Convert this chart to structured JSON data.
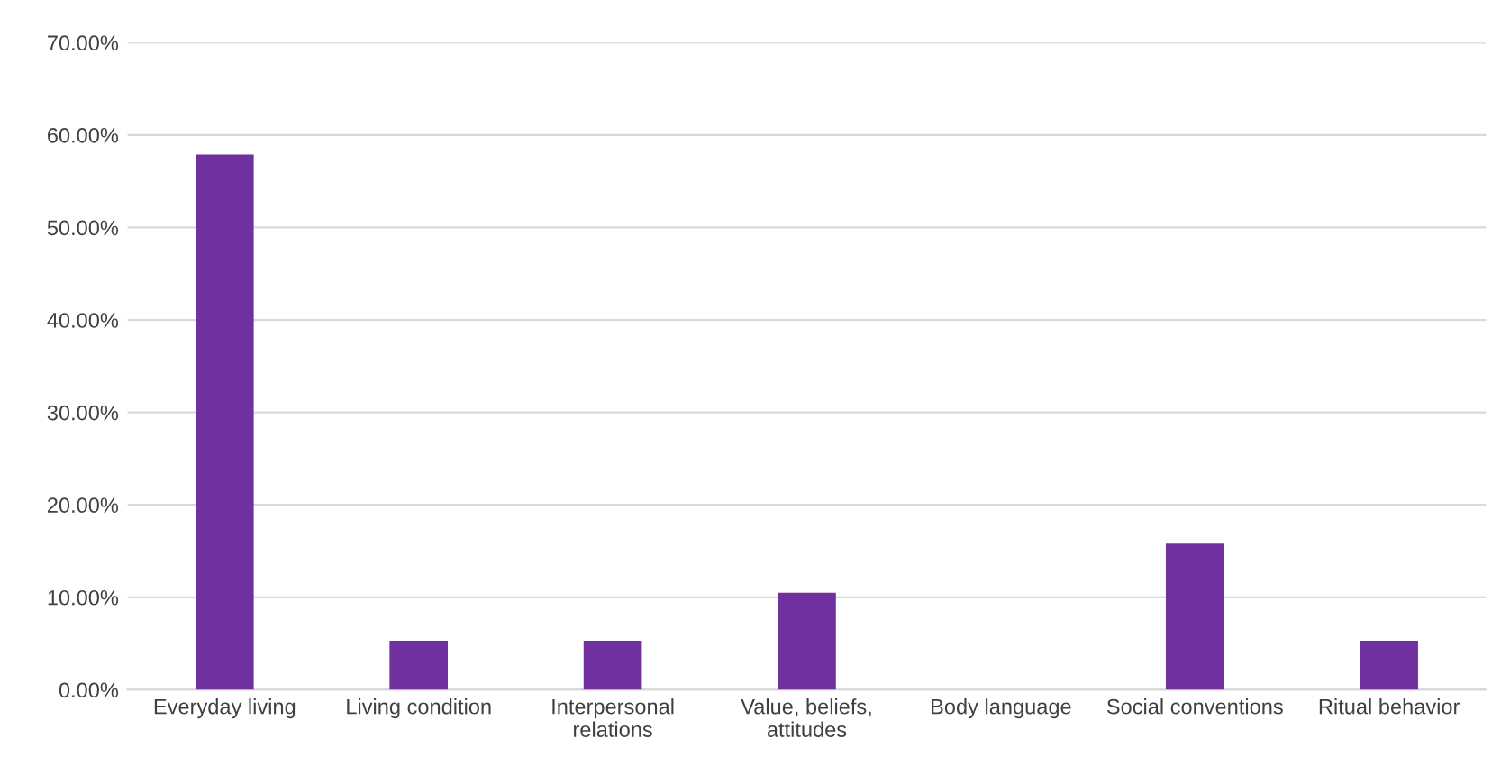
{
  "chart_data": {
    "type": "bar",
    "categories": [
      "Everyday living",
      "Living condition",
      "Interpersonal relations",
      "Value, beliefs, attitudes",
      "Body language",
      "Social conventions",
      "Ritual behavior"
    ],
    "values": [
      57.9,
      5.3,
      5.3,
      10.5,
      0,
      15.8,
      5.3
    ],
    "color": "#7030a0",
    "ylim": [
      0,
      70
    ],
    "yticks": [
      {
        "value": 0,
        "label": "0.00%"
      },
      {
        "value": 10,
        "label": "10.00%"
      },
      {
        "value": 20,
        "label": "20.00%"
      },
      {
        "value": 30,
        "label": "30.00%"
      },
      {
        "value": 40,
        "label": "40.00%"
      },
      {
        "value": 50,
        "label": "50.00%"
      },
      {
        "value": 60,
        "label": "60.00%"
      },
      {
        "value": 70,
        "label": "70.00%"
      }
    ],
    "grid": "y"
  }
}
